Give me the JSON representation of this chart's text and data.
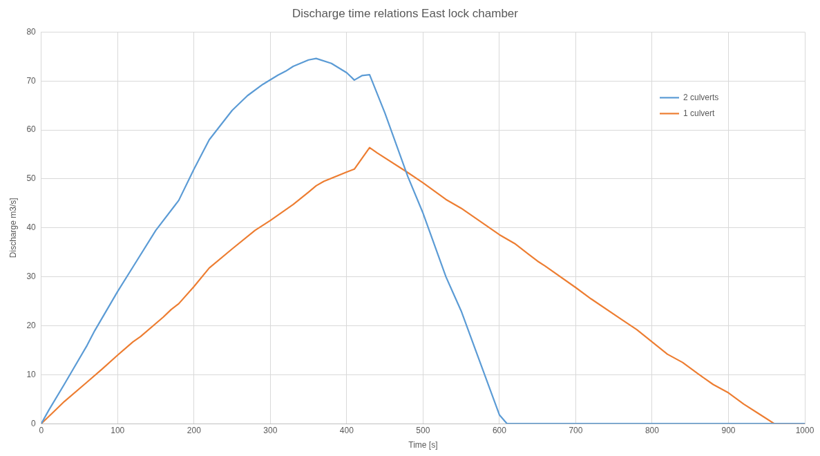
{
  "chart_data": {
    "type": "line",
    "title": "Discharge time relations East lock chamber",
    "xlabel": "Time [s]",
    "ylabel": "Discharge m3/s]",
    "xlim": [
      0,
      1000
    ],
    "xticks": [
      0,
      100,
      200,
      300,
      400,
      500,
      600,
      700,
      800,
      900,
      1000
    ],
    "ylim": [
      0,
      80
    ],
    "yticks": [
      0,
      10,
      20,
      30,
      40,
      50,
      60,
      70,
      80
    ],
    "grid": true,
    "legend": "top right",
    "marker": "none",
    "line_style": "solid",
    "series": [
      {
        "name": "2 culverts",
        "color": "#5b9bd5",
        "x": [
          0,
          10,
          30,
          60,
          70,
          100,
          120,
          150,
          180,
          200,
          220,
          250,
          270,
          290,
          310,
          320,
          330,
          350,
          360,
          380,
          400,
          410,
          420,
          430,
          450,
          480,
          500,
          530,
          540,
          550,
          600,
          610,
          1000
        ],
        "values": [
          0,
          2.8,
          8,
          16,
          19,
          27,
          32,
          39.5,
          45.6,
          52,
          58,
          64,
          67,
          69.3,
          71.2,
          72,
          73,
          74.3,
          74.6,
          73.6,
          71.7,
          70.2,
          71.1,
          71.3,
          63.5,
          50.5,
          43,
          30,
          26.5,
          23,
          1.8,
          0,
          0
        ]
      },
      {
        "name": "1 culvert",
        "color": "#ed7d31",
        "x": [
          0,
          20,
          30,
          60,
          80,
          100,
          120,
          130,
          160,
          170,
          180,
          200,
          220,
          250,
          280,
          300,
          330,
          350,
          360,
          370,
          400,
          410,
          430,
          440,
          480,
          500,
          530,
          550,
          600,
          620,
          650,
          660,
          700,
          720,
          760,
          780,
          800,
          820,
          840,
          860,
          880,
          900,
          920,
          940,
          960,
          970,
          1000
        ],
        "values": [
          0,
          3,
          4.5,
          8.5,
          11.2,
          14,
          16.7,
          17.8,
          21.8,
          23.3,
          24.5,
          28,
          31.8,
          35.7,
          39.5,
          41.5,
          44.8,
          47.3,
          48.6,
          49.5,
          51.4,
          52,
          56.4,
          55.3,
          51.3,
          49.2,
          45.8,
          44,
          38.6,
          36.8,
          33.2,
          32.2,
          27.8,
          25.5,
          21.3,
          19.2,
          16.7,
          14.2,
          12.5,
          10.2,
          8,
          6.3,
          4,
          2,
          0,
          0,
          0
        ]
      }
    ]
  }
}
